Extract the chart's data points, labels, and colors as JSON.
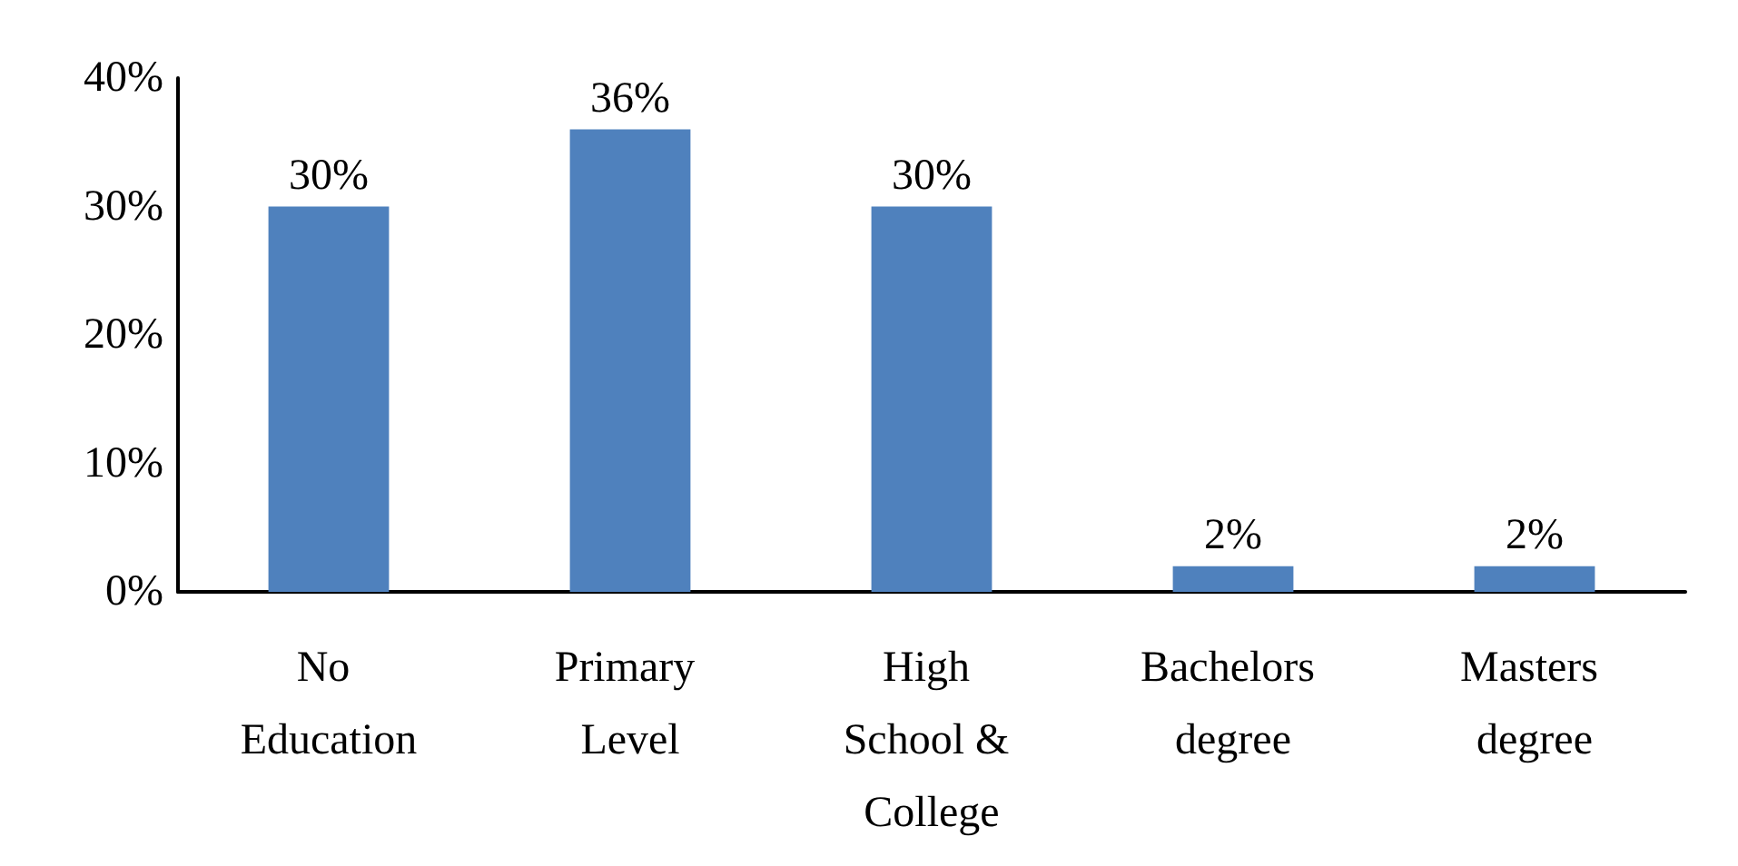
{
  "chart_data": {
    "type": "bar",
    "categories": [
      "No Education",
      "Primary Level",
      "High School & College",
      "Bachelors degree",
      "Masters degree"
    ],
    "values": [
      30,
      36,
      30,
      2,
      2
    ],
    "value_labels": [
      "30%",
      "36%",
      "30%",
      "2%",
      "2%"
    ],
    "color": "#4f81bd",
    "ylim": [
      0,
      40
    ],
    "yticks": [
      {
        "value": 0,
        "label": "0%"
      },
      {
        "value": 10,
        "label": "10%"
      },
      {
        "value": 20,
        "label": "20%"
      },
      {
        "value": 30,
        "label": "30%"
      },
      {
        "value": 40,
        "label": "40%"
      }
    ],
    "grid": false
  }
}
